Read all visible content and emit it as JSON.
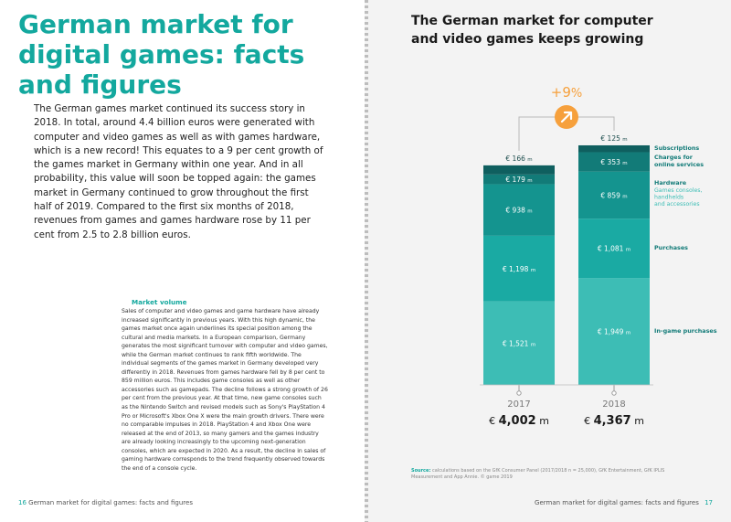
{
  "left": {
    "heading_lines": [
      "German market for",
      "digital games: facts",
      "and figures"
    ],
    "intro": "The German games market continued its success story in 2018. In total, around 4.4 billion euros were generated with computer and video games as well as with games hardware, which is a new record! This equates to a 9 per cent growth of the games market in Germany within one year. And in all probability, this value will soon be topped again: the games market in Germany continued to grow throughout the first half of 2019. Compared to the first six months of 2018, revenues from games and games hardware rose by 11 per cent from 2.5 to 2.8 billion euros.",
    "market_volume_title": "Market volume",
    "market_volume_body": "Sales of computer and video games and game hardware have already increased significantly in previous years. With this high dynamic, the games market once again underlines its special position among the cultural and media markets. In a European comparison, Germany generates the most significant turnover with computer and video games, while the German market continues to rank fifth worldwide. The individual segments of the games market in Germany developed very differently in 2018. Revenues from games hardware fell by 8 per cent to 859 million euros. This includes game consoles as well as other accessories such as gamepads. The decline follows a strong growth of 26 per cent from the previous year. At that time, new game consoles such as the Nintendo Switch and revised models such as Sony's PlayStation 4 Pro or Microsoft's Xbox One X were the main growth drivers. There were no comparable impulses in 2018. PlayStation 4 and Xbox One were released at the end of 2013, so many gamers and the games industry are already looking increasingly to the upcoming next-generation consoles, which are expected in 2020. As a result, the decline in sales of gaming hardware corresponds to the trend frequently observed towards the end of a console cycle.",
    "footer_page_number": "16",
    "footer_text": "German market for digital games: facts and figures"
  },
  "right": {
    "title_lines": [
      "The German market for computer",
      "and video games keeps growing"
    ],
    "source_label": "Source:",
    "source_text": "calculations based on the GfK Consumer Panel (2017/2018 n = 25,000), GfK Entertainment, GfK IPLIS Measurement and App Annie. © game 2019",
    "footer_text": "German market for digital games: facts and figures",
    "footer_page_number": "17"
  },
  "chart_data": {
    "type": "bar",
    "stacked": true,
    "unit": "m",
    "currency": "€",
    "categories": [
      "2017",
      "2018"
    ],
    "series": [
      {
        "name": "In-game purchases",
        "color": "#3dbdb5",
        "values": [
          1521,
          1949
        ],
        "labels": [
          "1,521",
          "1,949"
        ]
      },
      {
        "name": "Purchases",
        "color": "#1aaaa3",
        "values": [
          1198,
          1081
        ],
        "labels": [
          "1,198",
          "1,081"
        ]
      },
      {
        "name": "Hardware",
        "color": "#14948f",
        "values": [
          938,
          859
        ],
        "labels": [
          "938",
          "859"
        ]
      },
      {
        "name": "Charges for online services",
        "color": "#127b78",
        "values": [
          179,
          353
        ],
        "labels": [
          "179",
          "353"
        ]
      },
      {
        "name": "Subscriptions",
        "color": "#0f5f5f",
        "values": [
          166,
          125
        ],
        "labels": [
          "166",
          "125"
        ]
      }
    ],
    "totals": [
      "4,002",
      "4,367"
    ],
    "growth_label": "+9",
    "growth_unit": "%",
    "legend": [
      {
        "title": "Subscriptions",
        "sub": []
      },
      {
        "title": "Charges for online services",
        "sub": []
      },
      {
        "title": "Hardware",
        "sub": [
          "Games consoles,",
          "handhelds",
          "and accessories"
        ]
      },
      {
        "title": "Purchases",
        "sub": []
      },
      {
        "title": "In-game purchases",
        "sub": []
      }
    ],
    "colors": {
      "accent": "#13a89e",
      "growth": "#f6a03c"
    }
  }
}
